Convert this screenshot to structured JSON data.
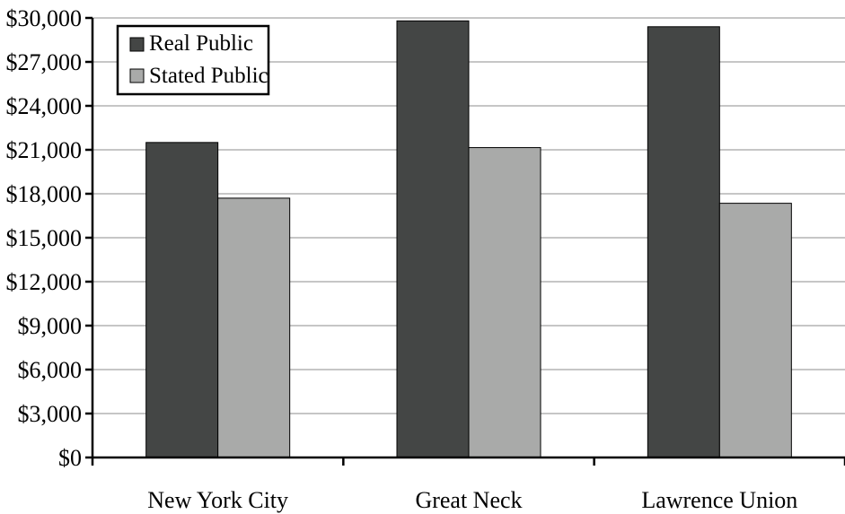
{
  "chart_data": {
    "type": "bar",
    "categories": [
      "New York City",
      "Great Neck",
      "Lawrence Union"
    ],
    "series": [
      {
        "name": "Real Public",
        "values": [
          21500,
          29800,
          29400
        ],
        "color": "#444645"
      },
      {
        "name": "Stated Public",
        "values": [
          17700,
          21150,
          17350
        ],
        "color": "#a9aaa9"
      }
    ],
    "ylim": [
      0,
      30000
    ],
    "yticks": [
      0,
      3000,
      6000,
      9000,
      12000,
      15000,
      18000,
      21000,
      24000,
      27000,
      30000
    ],
    "ytick_labels": [
      "$0",
      "$3,000",
      "$6,000",
      "$9,000",
      "$12,000",
      "$15,000",
      "$18,000",
      "$21,000",
      "$24,000",
      "$27,000",
      "$30,000"
    ],
    "grid": true,
    "legend_position": "top-left",
    "title": "",
    "xlabel": "",
    "ylabel": ""
  }
}
